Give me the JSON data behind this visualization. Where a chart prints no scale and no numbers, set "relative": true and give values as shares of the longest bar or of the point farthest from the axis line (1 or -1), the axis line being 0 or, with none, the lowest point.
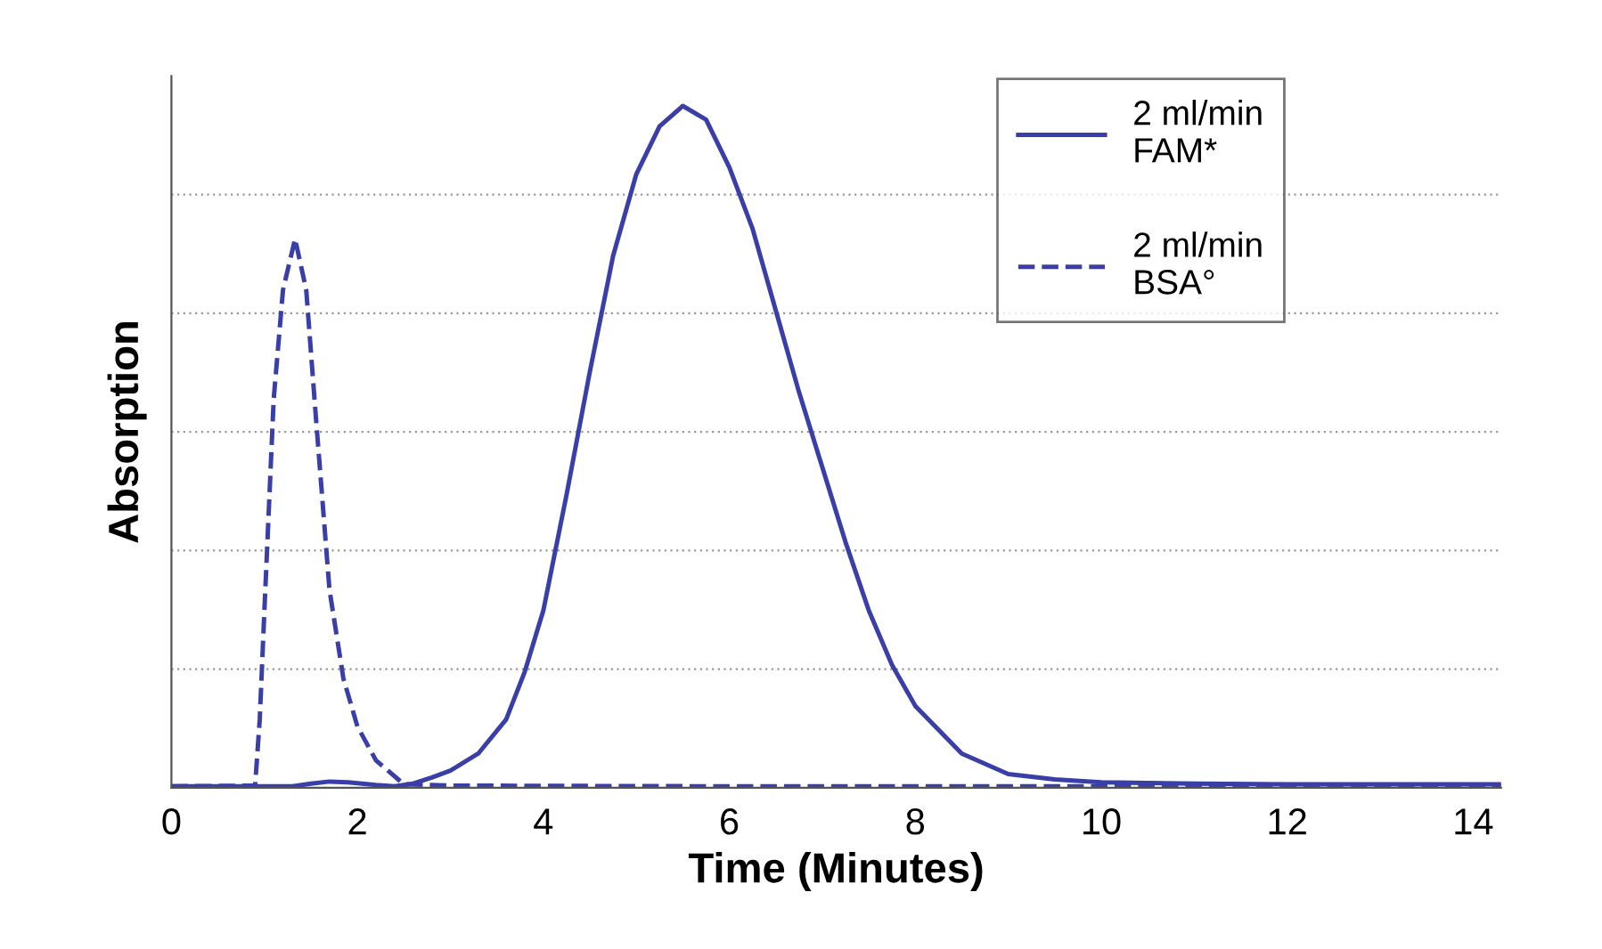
{
  "chart_data": {
    "type": "line",
    "relative": true,
    "xlabel": "Time (Minutes)",
    "ylabel": "Absorption",
    "xlim": [
      0,
      14.3
    ],
    "xticks": [
      0,
      2,
      4,
      6,
      8,
      10,
      12,
      14
    ],
    "grid": "y",
    "legend": "top right",
    "series": [
      {
        "name": "2 ml/min\nFAM*",
        "color": "#3a3fa8",
        "line_style": "solid",
        "x": [
          0,
          1.3,
          1.5,
          1.7,
          1.9,
          2.2,
          2.4,
          2.6,
          2.8,
          3.0,
          3.3,
          3.6,
          3.8,
          4.0,
          4.25,
          4.5,
          4.75,
          5.0,
          5.25,
          5.5,
          5.75,
          6.0,
          6.25,
          6.5,
          6.75,
          7.0,
          7.25,
          7.5,
          7.75,
          8.0,
          8.5,
          9.0,
          9.5,
          10,
          11,
          12,
          14.3
        ],
        "values": [
          0.002,
          0.002,
          0.006,
          0.009,
          0.008,
          0.004,
          0.002,
          0.006,
          0.015,
          0.025,
          0.05,
          0.1,
          0.17,
          0.26,
          0.43,
          0.61,
          0.78,
          0.9,
          0.97,
          1.0,
          0.98,
          0.91,
          0.82,
          0.7,
          0.58,
          0.47,
          0.36,
          0.26,
          0.18,
          0.12,
          0.05,
          0.02,
          0.012,
          0.008,
          0.006,
          0.005,
          0.005
        ]
      },
      {
        "name": "2 ml/min\nBSA°",
        "color": "#3a3fa8",
        "line_style": "dashed",
        "x": [
          0,
          0.9,
          0.95,
          1.0,
          1.1,
          1.2,
          1.33,
          1.45,
          1.55,
          1.7,
          1.85,
          2.0,
          2.2,
          2.5,
          3.0,
          6,
          10,
          14.3
        ],
        "values": [
          0.002,
          0.003,
          0.1,
          0.26,
          0.57,
          0.73,
          0.805,
          0.73,
          0.55,
          0.29,
          0.16,
          0.09,
          0.04,
          0.005,
          0.003,
          0.002,
          0.002,
          0.002
        ]
      }
    ]
  }
}
